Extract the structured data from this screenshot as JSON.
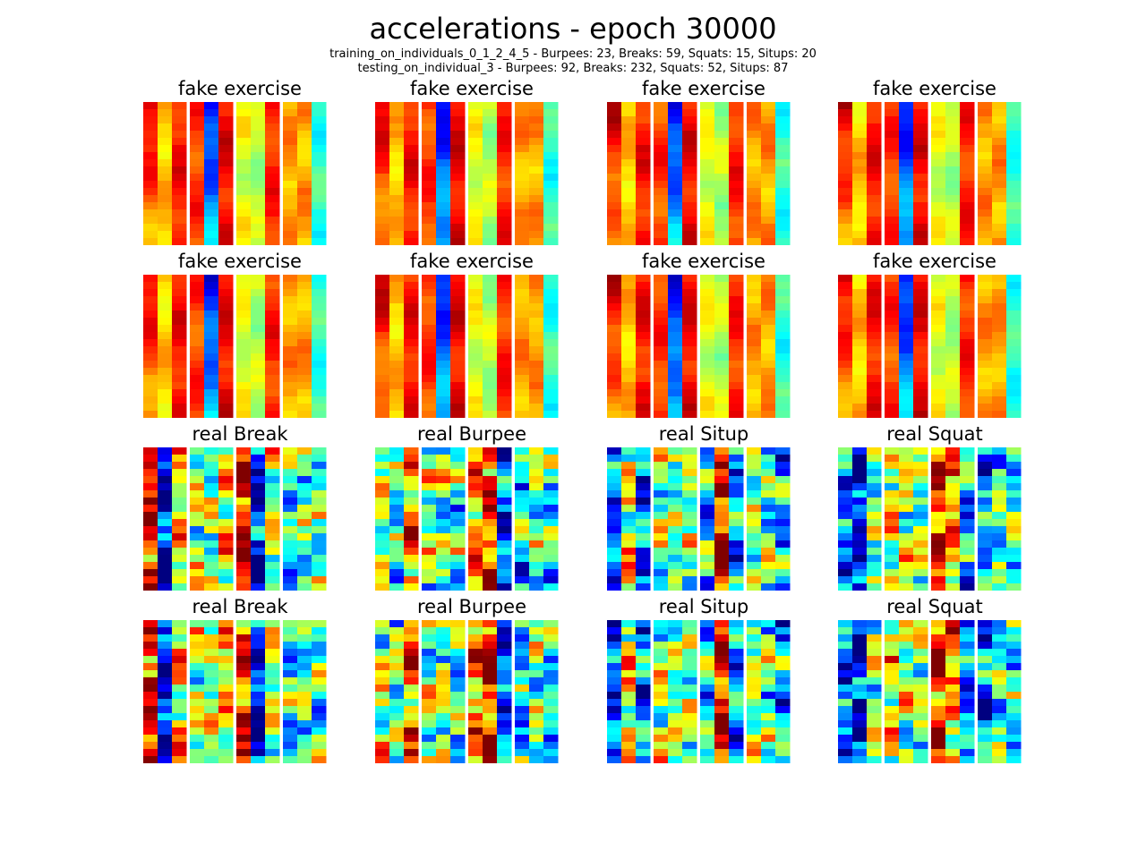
{
  "chart_data": {
    "type": "heatmap",
    "title": "accelerations - epoch 30000",
    "subtitle_lines": [
      "training_on_individuals_0_1_2_4_5 - Burpees: 23, Breaks: 59, Squats: 15, Situps: 20",
      "testing_on_individual_3 - Burpees: 92, Breaks: 232, Squats: 52, Situps: 87"
    ],
    "colormap": "jet",
    "grid": [
      4,
      4
    ],
    "panels": [
      {
        "title": "fake exercise",
        "seed": 11,
        "kind": "fake"
      },
      {
        "title": "fake exercise",
        "seed": 12,
        "kind": "fake"
      },
      {
        "title": "fake exercise",
        "seed": 13,
        "kind": "fake"
      },
      {
        "title": "fake exercise",
        "seed": 14,
        "kind": "fake"
      },
      {
        "title": "fake exercise",
        "seed": 15,
        "kind": "fake"
      },
      {
        "title": "fake exercise",
        "seed": 16,
        "kind": "fake"
      },
      {
        "title": "fake exercise",
        "seed": 17,
        "kind": "fake"
      },
      {
        "title": "fake exercise",
        "seed": 18,
        "kind": "fake"
      },
      {
        "title": "real Break",
        "seed": 21,
        "kind": "break"
      },
      {
        "title": "real Burpee",
        "seed": 22,
        "kind": "burpee"
      },
      {
        "title": "real Situp",
        "seed": 23,
        "kind": "situp"
      },
      {
        "title": "real Squat",
        "seed": 24,
        "kind": "squat"
      },
      {
        "title": "real Break",
        "seed": 31,
        "kind": "break"
      },
      {
        "title": "real Burpee",
        "seed": 32,
        "kind": "burpee"
      },
      {
        "title": "real Situp",
        "seed": 33,
        "kind": "situp"
      },
      {
        "title": "real Squat",
        "seed": 34,
        "kind": "squat"
      }
    ]
  }
}
